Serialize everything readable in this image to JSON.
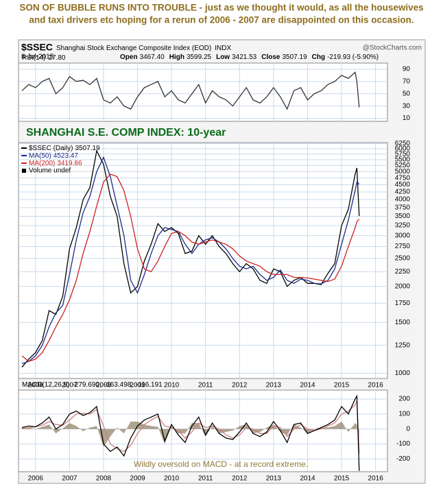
{
  "header": {
    "title_lines": [
      "SON OF BUBBLE RUNS INTO TROUBLE - just as we thought it would, as all the housewives",
      "and taxi drivers etc hoping for a rerun of 2006 - 2007 are disappointed on this occasion."
    ],
    "symbol": "$SSEC",
    "name": "Shanghai Stock Exchange Composite Index (EOD)",
    "exchange": "INDX",
    "source": "@StockCharts.com",
    "date": "8-Jul-2015",
    "quote": [
      {
        "label": "Open",
        "value": "3467.40"
      },
      {
        "label": "High",
        "value": "3599.25"
      },
      {
        "label": "Low",
        "value": "3421.53"
      },
      {
        "label": "Close",
        "value": "3507.19"
      },
      {
        "label": "Chg",
        "value": "-219.93 (-5.90%)"
      }
    ]
  },
  "chart_data": [
    {
      "type": "line",
      "legend": {
        "text": "RSI(14)",
        "values": [
          {
            "value": 27.8,
            "label": "27.80"
          }
        ]
      },
      "x": [
        2005.6,
        2005.8,
        2006.0,
        2006.2,
        2006.4,
        2006.6,
        2006.8,
        2007.0,
        2007.2,
        2007.4,
        2007.6,
        2007.8,
        2008.0,
        2008.2,
        2008.4,
        2008.6,
        2008.8,
        2009.0,
        2009.2,
        2009.4,
        2009.6,
        2009.8,
        2010.0,
        2010.2,
        2010.4,
        2010.6,
        2010.8,
        2011.0,
        2011.2,
        2011.4,
        2011.6,
        2011.8,
        2012.0,
        2012.2,
        2012.4,
        2012.6,
        2012.8,
        2013.0,
        2013.2,
        2013.4,
        2013.6,
        2013.8,
        2014.0,
        2014.2,
        2014.4,
        2014.6,
        2014.8,
        2015.0,
        2015.2,
        2015.4,
        2015.45,
        2015.52
      ],
      "series": [
        {
          "color": "#333333",
          "values": [
            55,
            65,
            60,
            70,
            75,
            50,
            60,
            78,
            70,
            72,
            65,
            75,
            40,
            35,
            45,
            30,
            25,
            45,
            60,
            65,
            70,
            45,
            55,
            40,
            35,
            50,
            65,
            35,
            55,
            45,
            40,
            30,
            45,
            60,
            40,
            35,
            45,
            60,
            45,
            25,
            55,
            60,
            40,
            50,
            55,
            65,
            70,
            80,
            75,
            85,
            70,
            27.8
          ]
        }
      ],
      "xlim": [
        2005.5,
        2016.35
      ],
      "xticks": [
        2006,
        2007,
        2008,
        2009,
        2010,
        2011,
        2012,
        2013,
        2014,
        2015,
        2016
      ],
      "x_labels": false,
      "ylim": [
        5,
        100
      ],
      "yticks": [
        10,
        30,
        50,
        70,
        90
      ],
      "grid": true
    },
    {
      "type": "line",
      "annotation": "SHANGHAI S.E. COMP INDEX: 10-year",
      "log_scale": true,
      "x": [
        2005.6,
        2005.8,
        2006.0,
        2006.2,
        2006.4,
        2006.6,
        2006.8,
        2007.0,
        2007.2,
        2007.4,
        2007.6,
        2007.8,
        2008.0,
        2008.2,
        2008.4,
        2008.6,
        2008.8,
        2009.0,
        2009.2,
        2009.4,
        2009.6,
        2009.8,
        2010.0,
        2010.2,
        2010.4,
        2010.6,
        2010.8,
        2011.0,
        2011.2,
        2011.4,
        2011.6,
        2011.8,
        2012.0,
        2012.2,
        2012.4,
        2012.6,
        2012.8,
        2013.0,
        2013.2,
        2013.4,
        2013.6,
        2013.8,
        2014.0,
        2014.2,
        2014.4,
        2014.6,
        2014.8,
        2015.0,
        2015.2,
        2015.4,
        2015.45,
        2015.52
      ],
      "series": [
        {
          "name": "$SSEC (Daily)",
          "last_value": 3507.19,
          "color": "#000000",
          "values": [
            1050,
            1120,
            1180,
            1300,
            1650,
            1600,
            1850,
            2700,
            3200,
            4000,
            4400,
            5900,
            5300,
            4100,
            3500,
            2400,
            1900,
            2000,
            2450,
            2800,
            3300,
            3100,
            3200,
            3050,
            2600,
            2650,
            3000,
            2800,
            3000,
            2750,
            2600,
            2400,
            2250,
            2400,
            2300,
            2100,
            2050,
            2300,
            2250,
            2000,
            2100,
            2150,
            2050,
            2050,
            2030,
            2220,
            2400,
            3250,
            3700,
            4900,
            5150,
            3507.19
          ]
        },
        {
          "name": "MA(50)",
          "last_value": 4523.47,
          "color": "#1a2a8a",
          "values": [
            1080,
            1100,
            1150,
            1250,
            1450,
            1620,
            1720,
            2200,
            2900,
            3600,
            4100,
            5000,
            5600,
            4800,
            3800,
            3000,
            2100,
            1900,
            2200,
            2600,
            3000,
            3200,
            3150,
            3100,
            2800,
            2600,
            2800,
            2900,
            2950,
            2850,
            2700,
            2500,
            2350,
            2300,
            2350,
            2200,
            2100,
            2150,
            2280,
            2100,
            2050,
            2120,
            2100,
            2050,
            2040,
            2100,
            2300,
            2800,
            3400,
            4300,
            4600,
            4523.47
          ]
        },
        {
          "name": "MA(200)",
          "last_value": 3419.86,
          "color": "#cc2020",
          "values": [
            1150,
            1100,
            1120,
            1180,
            1300,
            1450,
            1600,
            1800,
            2100,
            2600,
            3100,
            3800,
            4600,
            4900,
            4800,
            4300,
            3500,
            2700,
            2300,
            2250,
            2450,
            2750,
            3050,
            3100,
            3000,
            2850,
            2800,
            2850,
            2900,
            2850,
            2800,
            2700,
            2550,
            2450,
            2400,
            2350,
            2250,
            2200,
            2200,
            2200,
            2150,
            2150,
            2140,
            2120,
            2100,
            2080,
            2120,
            2350,
            2750,
            3200,
            3350,
            3419.86
          ]
        }
      ],
      "extra_legend": "Volume undef",
      "xlim": [
        2005.5,
        2016.35
      ],
      "xticks": [
        2006,
        2007,
        2008,
        2009,
        2010,
        2011,
        2012,
        2013,
        2014,
        2015,
        2016
      ],
      "x_labels": true,
      "ylim": [
        960,
        6300
      ],
      "yticks": [
        1000,
        1250,
        1500,
        1750,
        2000,
        2250,
        2500,
        2750,
        3000,
        3250,
        3500,
        3750,
        4000,
        4250,
        4500,
        4750,
        5000,
        5250,
        5500,
        5750,
        6000,
        6250
      ],
      "grid": true
    },
    {
      "type": "line",
      "annotation": "Wildly oversold on MACD - at a record extreme.",
      "legend": {
        "text": "MACD(12,26,9)",
        "values": [
          {
            "value": -279.69,
            "label": "-279.690,"
          },
          {
            "value": -163.498,
            "label": "-163.498,"
          },
          {
            "value": -116.191,
            "label": "-116.191"
          }
        ]
      },
      "x": [
        2005.6,
        2005.8,
        2006.0,
        2006.2,
        2006.4,
        2006.6,
        2006.8,
        2007.0,
        2007.2,
        2007.4,
        2007.6,
        2007.8,
        2008.0,
        2008.2,
        2008.4,
        2008.6,
        2008.8,
        2009.0,
        2009.2,
        2009.4,
        2009.6,
        2009.8,
        2010.0,
        2010.2,
        2010.4,
        2010.6,
        2010.8,
        2011.0,
        2011.2,
        2011.4,
        2011.6,
        2011.8,
        2012.0,
        2012.2,
        2012.4,
        2012.6,
        2012.8,
        2013.0,
        2013.2,
        2013.4,
        2013.6,
        2013.8,
        2014.0,
        2014.2,
        2014.4,
        2014.6,
        2014.8,
        2015.0,
        2015.2,
        2015.4,
        2015.45,
        2015.52
      ],
      "series": [
        {
          "color": "#8c7c60",
          "style": "area",
          "values": [
            10,
            10,
            0,
            15,
            30,
            -30,
            5,
            40,
            20,
            -15,
            10,
            20,
            -120,
            -50,
            10,
            -30,
            50,
            50,
            30,
            20,
            15,
            -100,
            20,
            -30,
            -30,
            40,
            40,
            -50,
            20,
            -30,
            -20,
            -10,
            20,
            30,
            -30,
            -20,
            10,
            30,
            -20,
            -40,
            30,
            10,
            -30,
            0,
            10,
            10,
            20,
            50,
            -20,
            40,
            30,
            -116.191
          ]
        },
        {
          "color": "#d08080",
          "values": [
            0,
            10,
            15,
            25,
            50,
            30,
            25,
            60,
            100,
            105,
            100,
            130,
            20,
            -100,
            -130,
            -150,
            -110,
            -30,
            30,
            60,
            85,
            20,
            10,
            -10,
            -60,
            -20,
            40,
            10,
            20,
            0,
            -40,
            -60,
            -40,
            10,
            0,
            -30,
            -30,
            20,
            10,
            -50,
            0,
            30,
            0,
            -10,
            0,
            20,
            40,
            100,
            120,
            160,
            190,
            -163.498
          ]
        },
        {
          "color": "#000000",
          "values": [
            10,
            20,
            15,
            40,
            80,
            0,
            30,
            100,
            120,
            90,
            110,
            150,
            -100,
            -150,
            -120,
            -180,
            -60,
            20,
            60,
            80,
            100,
            -80,
            30,
            -40,
            -90,
            20,
            80,
            -40,
            40,
            -30,
            -60,
            -70,
            -20,
            40,
            -30,
            -50,
            -20,
            50,
            -10,
            -90,
            30,
            40,
            -30,
            -10,
            10,
            30,
            60,
            150,
            100,
            200,
            220,
            -279.69
          ]
        }
      ],
      "xlim": [
        2005.5,
        2016.35
      ],
      "xticks": [
        2006,
        2007,
        2008,
        2009,
        2010,
        2011,
        2012,
        2013,
        2014,
        2015,
        2016
      ],
      "x_labels": true,
      "ylim": [
        -285,
        260
      ],
      "yticks": [
        200,
        100,
        0,
        -100,
        -200
      ],
      "grid": true
    }
  ]
}
